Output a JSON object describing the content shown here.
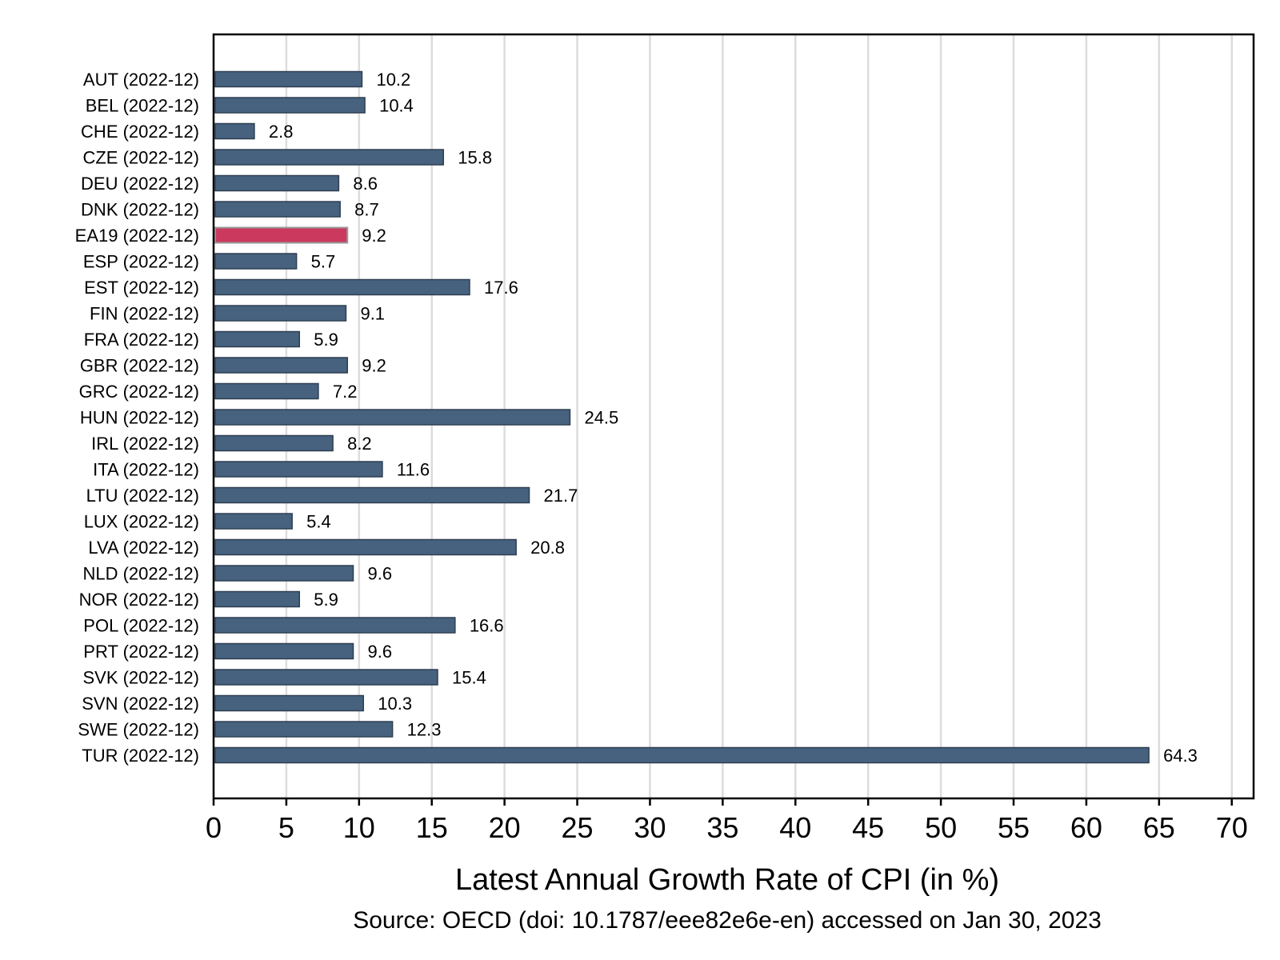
{
  "chart_data": {
    "type": "bar",
    "orientation": "horizontal",
    "categories": [
      "AUT (2022-12)",
      "BEL (2022-12)",
      "CHE (2022-12)",
      "CZE (2022-12)",
      "DEU (2022-12)",
      "DNK (2022-12)",
      "EA19 (2022-12)",
      "ESP (2022-12)",
      "EST (2022-12)",
      "FIN (2022-12)",
      "FRA (2022-12)",
      "GBR (2022-12)",
      "GRC (2022-12)",
      "HUN (2022-12)",
      "IRL (2022-12)",
      "ITA (2022-12)",
      "LTU (2022-12)",
      "LUX (2022-12)",
      "LVA (2022-12)",
      "NLD (2022-12)",
      "NOR (2022-12)",
      "POL (2022-12)",
      "PRT (2022-12)",
      "SVK (2022-12)",
      "SVN (2022-12)",
      "SWE (2022-12)",
      "TUR (2022-12)"
    ],
    "values": [
      10.2,
      10.4,
      2.8,
      15.8,
      8.6,
      8.7,
      9.2,
      5.7,
      17.6,
      9.1,
      5.9,
      9.2,
      7.2,
      24.5,
      8.2,
      11.6,
      21.7,
      5.4,
      20.8,
      9.6,
      5.9,
      16.6,
      9.6,
      15.4,
      10.3,
      12.3,
      64.3
    ],
    "value_labels": [
      "10.2",
      "10.4",
      "2.8",
      "15.8",
      "8.6",
      "8.7",
      "9.2",
      "5.7",
      "17.6",
      "9.1",
      "5.9",
      "9.2",
      "7.2",
      "24.5",
      "8.2",
      "11.6",
      "21.7",
      "5.4",
      "20.8",
      "9.6",
      "5.9",
      "16.6",
      "9.6",
      "15.4",
      "10.3",
      "12.3",
      "64.3"
    ],
    "highlight_category": "EA19 (2022-12)",
    "xlabel": "Latest Annual Growth Rate of CPI (in %)",
    "ylabel": "",
    "xlim": [
      0,
      71.5
    ],
    "xticks": [
      0,
      5,
      10,
      15,
      20,
      25,
      30,
      35,
      40,
      45,
      50,
      55,
      60,
      65,
      70
    ],
    "xtick_labels": [
      "0",
      "5",
      "10",
      "15",
      "20",
      "25",
      "30",
      "35",
      "40",
      "45",
      "50",
      "55",
      "60",
      "65",
      "70"
    ],
    "grid": "vertical",
    "legend": "none",
    "colors": {
      "bar": "#47627f",
      "highlight": "#cb3a5e"
    }
  },
  "source_note": "Source: OECD (doi: 10.1787/eee82e6e-en) accessed on Jan 30, 2023"
}
